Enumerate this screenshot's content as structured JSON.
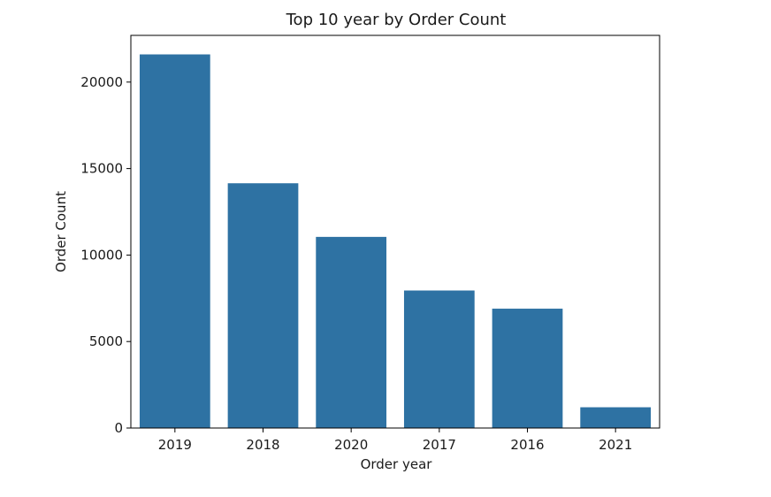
{
  "chart_data": {
    "type": "bar",
    "title": "Top 10 year by Order Count",
    "xlabel": "Order year",
    "ylabel": "Order Count",
    "categories": [
      "2019",
      "2018",
      "2020",
      "2017",
      "2016",
      "2021"
    ],
    "values": [
      21600,
      14150,
      11050,
      7950,
      6900,
      1200
    ],
    "ylim": [
      0,
      22700
    ],
    "yticks": [
      0,
      5000,
      10000,
      15000,
      20000
    ],
    "grid": false,
    "bar_color": "#2e72a3"
  }
}
